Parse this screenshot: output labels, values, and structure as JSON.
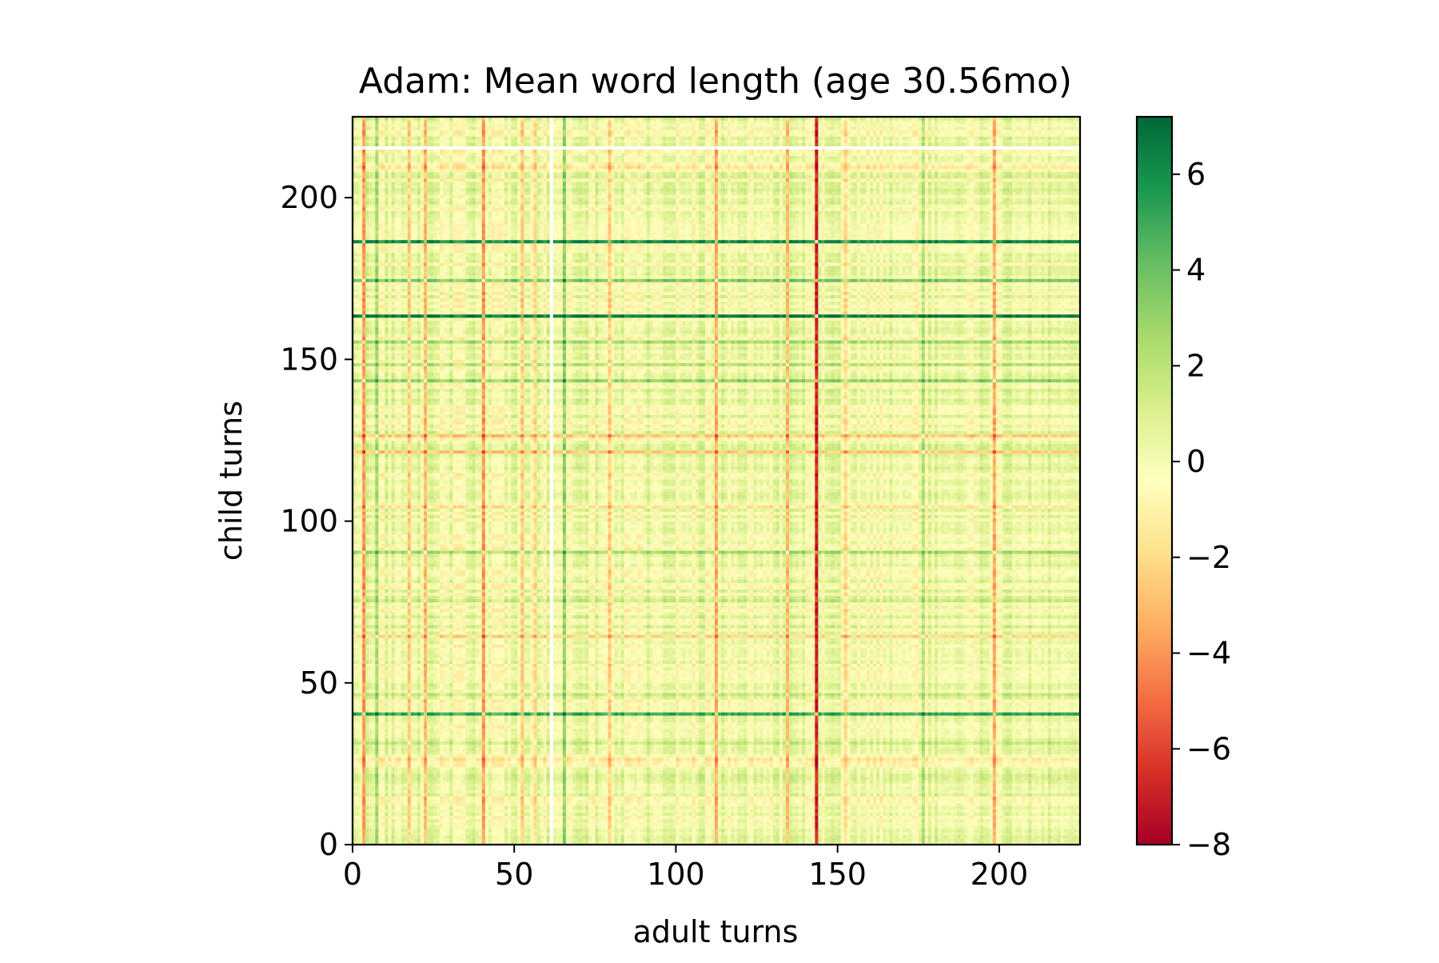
{
  "chart_data": {
    "type": "heatmap",
    "title": "Adam: Mean word length (age 30.56mo)",
    "xlabel": "adult turns",
    "ylabel": "child turns",
    "xlim": [
      0,
      225
    ],
    "ylim": [
      0,
      225
    ],
    "xticks": [
      0,
      50,
      100,
      150,
      200
    ],
    "yticks": [
      0,
      50,
      100,
      150,
      200
    ],
    "colormap": "RdYlGn",
    "colorbar": {
      "range": [
        -8,
        7.2
      ],
      "ticks": [
        6,
        4,
        2,
        0,
        -2,
        -4,
        -6,
        -8
      ],
      "tick_labels": [
        "6",
        "4",
        "2",
        "0",
        "−2",
        "−4",
        "−6",
        "−8"
      ]
    },
    "matrix_model": "value(x, y) ≈ adult_turn_profile[x] + child_turn_profile[y]",
    "child_turn_profile": [
      {
        "y": 215,
        "value": "missing"
      },
      {
        "y": 209,
        "value": -1.5
      },
      {
        "y": 186,
        "value": 6.0
      },
      {
        "y": 174,
        "value": 3.5
      },
      {
        "y": 163,
        "value": 6.5
      },
      {
        "y": 155,
        "value": 2.5
      },
      {
        "y": 148,
        "value": 2.0
      },
      {
        "y": 143,
        "value": 3.0
      },
      {
        "y": 126,
        "value": -2.5
      },
      {
        "y": 121,
        "value": -2.5
      },
      {
        "y": 104,
        "value": -1.5
      },
      {
        "y": 90,
        "value": 2.5
      },
      {
        "y": 75,
        "value": 1.5
      },
      {
        "y": 64,
        "value": -2.0
      },
      {
        "y": 46,
        "value": 1.5
      },
      {
        "y": 40,
        "value": 5.0
      },
      {
        "y": 31,
        "value": 1.5
      },
      {
        "y": 26,
        "value": -1.5
      }
    ],
    "adult_turn_profile": [
      {
        "x": 3,
        "value": -4.0
      },
      {
        "x": 7,
        "value": 2.5
      },
      {
        "x": 17,
        "value": -2.5
      },
      {
        "x": 22,
        "value": -3.0
      },
      {
        "x": 40,
        "value": -4.0
      },
      {
        "x": 52,
        "value": -2.5
      },
      {
        "x": 56,
        "value": -2.0
      },
      {
        "x": 61,
        "value": "missing"
      },
      {
        "x": 65,
        "value": 3.0
      },
      {
        "x": 79,
        "value": -2.5
      },
      {
        "x": 112,
        "value": -3.5
      },
      {
        "x": 134,
        "value": -3.0
      },
      {
        "x": 143,
        "value": -7.0
      },
      {
        "x": 152,
        "value": -2.0
      },
      {
        "x": 176,
        "value": 2.0
      },
      {
        "x": 198,
        "value": -3.5
      }
    ]
  }
}
